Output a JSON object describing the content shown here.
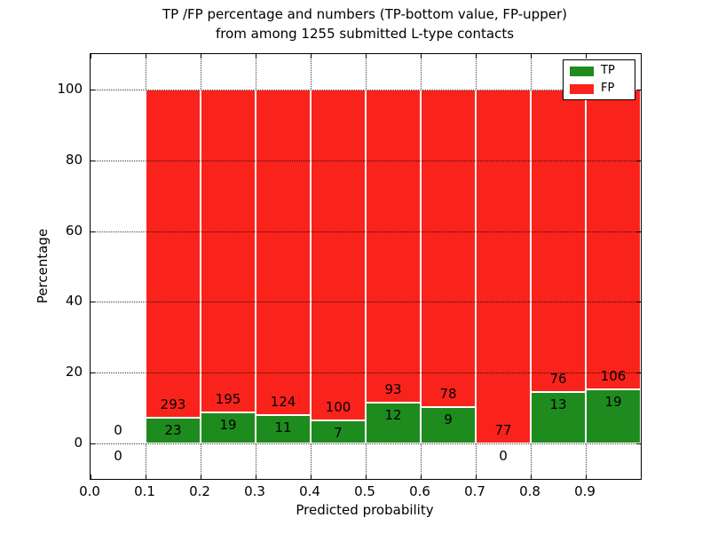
{
  "figure": {
    "title_line1": "TP /FP percentage and numbers (TP-bottom value, FP-upper)",
    "title_line2": "from among 1255 submitted L-type contacts",
    "xlabel": "Predicted probability",
    "ylabel": "Percentage"
  },
  "legend": {
    "items": [
      {
        "label": "TP",
        "color": "#1e8b1e"
      },
      {
        "label": "FP",
        "color": "#f9231c"
      }
    ]
  },
  "chart_data": {
    "type": "bar",
    "stacked": true,
    "title": "TP /FP percentage and numbers (TP-bottom value, FP-upper) from among 1255 submitted L-type contacts",
    "xlabel": "Predicted probability",
    "ylabel": "Percentage",
    "total_contacts": 1255,
    "xlim": [
      0,
      1
    ],
    "ylim": [
      -10,
      110
    ],
    "grid": true,
    "legend_position": "upper right",
    "bin_width": 0.1,
    "bin_starts": [
      0.0,
      0.1,
      0.2,
      0.3,
      0.4,
      0.5,
      0.6,
      0.7,
      0.8,
      0.9
    ],
    "x_tick_values": [
      0,
      0.1,
      0.2,
      0.3,
      0.4,
      0.5,
      0.6,
      0.7,
      0.8,
      0.9
    ],
    "x_ticks": [
      "0.0",
      "0.1",
      "0.2",
      "0.3",
      "0.4",
      "0.5",
      "0.6",
      "0.7",
      "0.8",
      "0.9"
    ],
    "y_tick_values": [
      0,
      20,
      40,
      60,
      80,
      100
    ],
    "y_ticks": [
      "0",
      "20",
      "40",
      "60",
      "80",
      "100"
    ],
    "series": [
      {
        "name": "TP",
        "color": "#1e8b1e",
        "counts": [
          0,
          23,
          19,
          11,
          7,
          12,
          9,
          0,
          13,
          19
        ],
        "pct": [
          0,
          7.28,
          8.88,
          8.15,
          6.54,
          11.43,
          10.34,
          0,
          14.61,
          15.2
        ]
      },
      {
        "name": "FP",
        "color": "#f9231c",
        "counts": [
          0,
          293,
          195,
          124,
          100,
          93,
          78,
          77,
          76,
          106
        ],
        "pct": [
          0,
          92.72,
          91.12,
          91.85,
          93.46,
          88.57,
          89.66,
          100,
          85.39,
          84.8
        ]
      }
    ]
  }
}
